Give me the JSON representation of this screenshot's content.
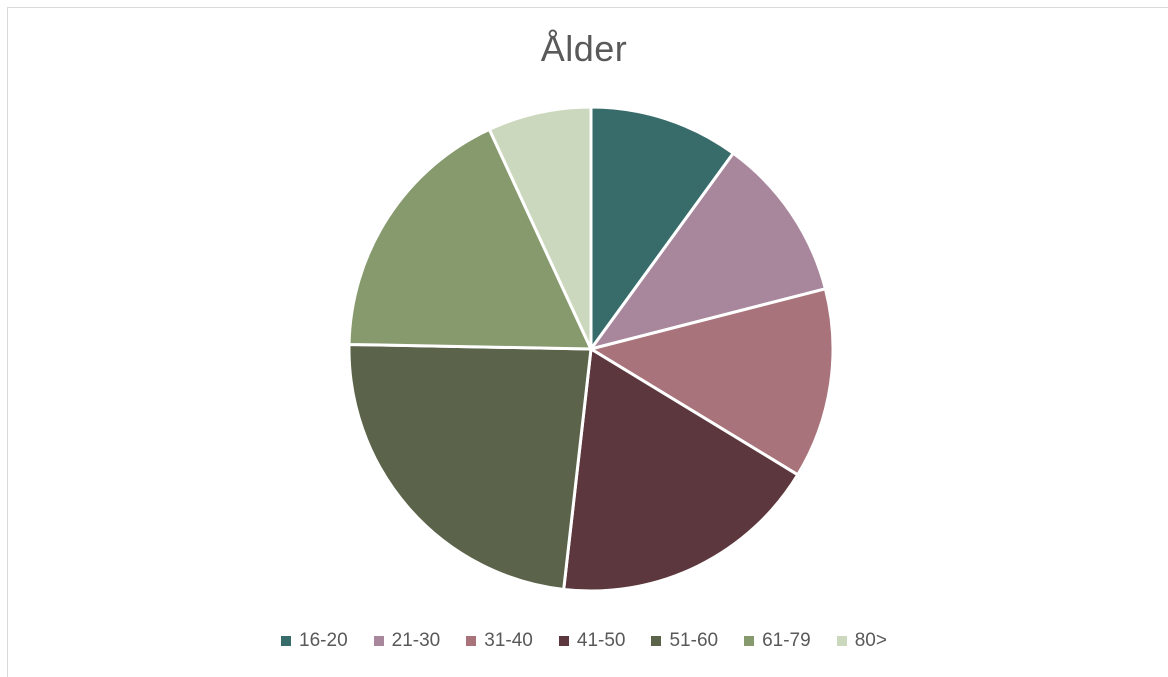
{
  "chart_data": {
    "type": "pie",
    "title": "Ålder",
    "categories": [
      "16-20",
      "21-30",
      "31-40",
      "41-50",
      "51-60",
      "61-79",
      "80>"
    ],
    "values": [
      10.0,
      11.0,
      12.7,
      18.1,
      23.5,
      17.8,
      6.9
    ],
    "colors": [
      "#386c6b",
      "#a8879c",
      "#a8737a",
      "#5c373d",
      "#5b644a",
      "#879a6e",
      "#cbd8bd"
    ],
    "legend_position": "bottom"
  }
}
